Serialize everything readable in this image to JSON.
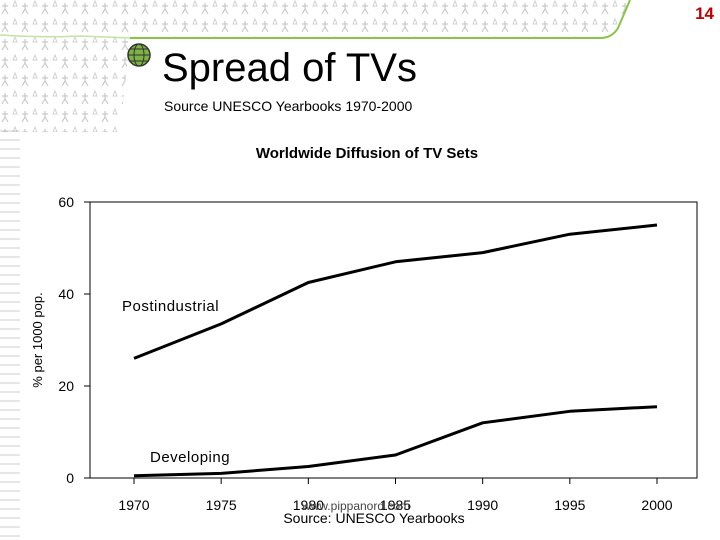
{
  "slide": {
    "number": "14",
    "title": "Spread of TVs",
    "subtitle": "Source UNESCO Yearbooks 1970-2000",
    "watermark": "www.pippanord.com"
  },
  "colors": {
    "slide_number": "#c00000",
    "curve": "#000000",
    "banner": "#ffffff"
  },
  "chart_data": {
    "type": "line",
    "title": "Worldwide Diffusion of  TV Sets",
    "ylabel": "% per 1000 pop.",
    "xlabel": "Source: UNESCO Yearbooks",
    "x": [
      1970,
      1975,
      1980,
      1985,
      1990,
      1995,
      2000
    ],
    "xticks": [
      "1970",
      "1975",
      "1980",
      "1985",
      "1990",
      "1995",
      "2000"
    ],
    "yticks": [
      "0",
      "20",
      "40",
      "60"
    ],
    "xlim": [
      1970,
      2000
    ],
    "ylim": [
      0,
      60
    ],
    "grid": false,
    "series": [
      {
        "name": "Postindustrial",
        "values": [
          26,
          33.5,
          42.5,
          47,
          49,
          53,
          55
        ]
      },
      {
        "name": "Developing",
        "values": [
          0.5,
          1,
          2.5,
          5,
          12,
          14.5,
          15.5
        ]
      }
    ]
  }
}
